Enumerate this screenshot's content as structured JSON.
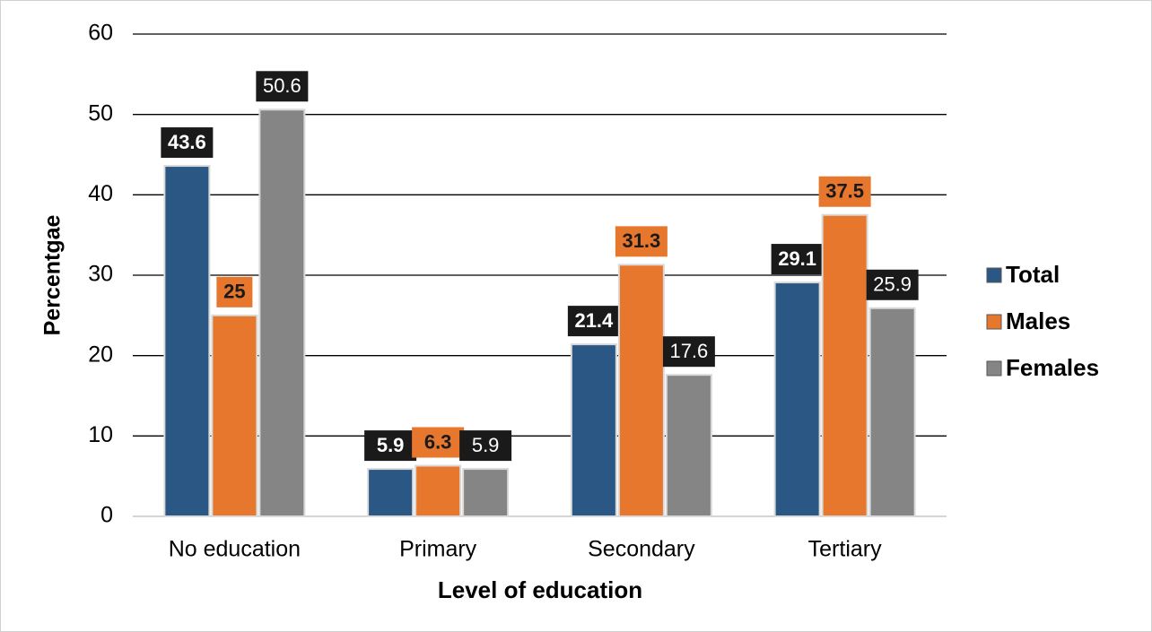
{
  "chart_data": {
    "type": "bar",
    "x_label": "Level of education",
    "y_label": "Percentgae",
    "categories": [
      "No education",
      "Primary",
      "Secondary",
      "Tertiary"
    ],
    "series": [
      {
        "name": "Total",
        "color": "#2a5783",
        "values": [
          43.6,
          5.9,
          21.4,
          29.1
        ]
      },
      {
        "name": "Males",
        "color": "#e8772e",
        "values": [
          25,
          6.3,
          31.3,
          37.5
        ]
      },
      {
        "name": "Females",
        "color": "#858585",
        "values": [
          50.6,
          5.9,
          17.6,
          25.9
        ]
      }
    ],
    "ylim": [
      0,
      60
    ],
    "yticks": [
      0,
      10,
      20,
      30,
      40,
      50,
      60
    ],
    "grid": true,
    "legend": "right"
  }
}
